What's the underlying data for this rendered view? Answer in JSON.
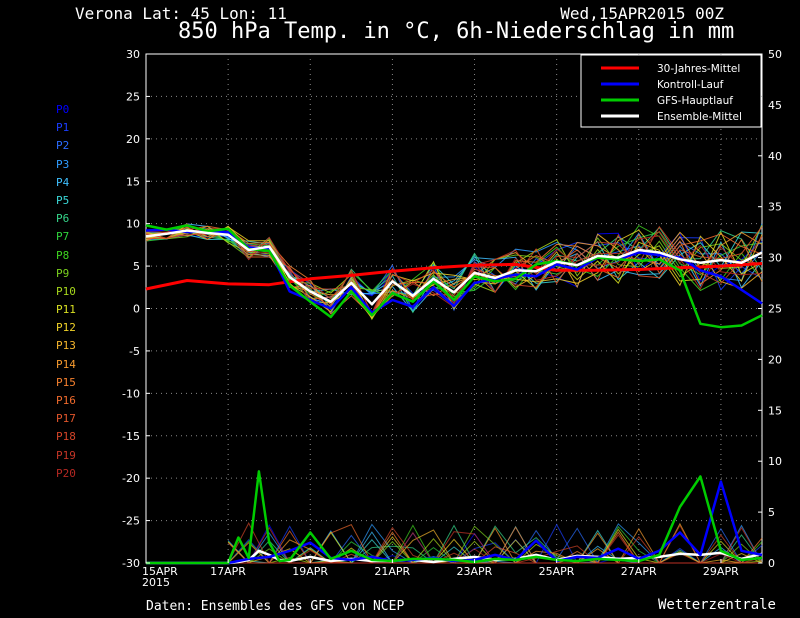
{
  "header": {
    "location": "Verona   Lat: 45 Lon: 11",
    "datetime": "Wed,15APR2015 00Z",
    "title": "850 hPa Temp. in °C, 6h-Niederschlag in mm"
  },
  "footer": {
    "source": "Daten: Ensembles des GFS von NCEP",
    "brand": "Wetterzentrale"
  },
  "members": [
    {
      "label": "P0",
      "color": "#0000ff"
    },
    {
      "label": "P1",
      "color": "#1a3dff"
    },
    {
      "label": "P2",
      "color": "#2a6cff"
    },
    {
      "label": "P3",
      "color": "#2f9cff"
    },
    {
      "label": "P4",
      "color": "#3fc0ff"
    },
    {
      "label": "P5",
      "color": "#3ad8d8"
    },
    {
      "label": "P6",
      "color": "#35d58a"
    },
    {
      "label": "P7",
      "color": "#2fd23c"
    },
    {
      "label": "P8",
      "color": "#3ed420"
    },
    {
      "label": "P9",
      "color": "#7ad01e"
    },
    {
      "label": "P10",
      "color": "#a6d61c"
    },
    {
      "label": "P11",
      "color": "#d9e021"
    },
    {
      "label": "P12",
      "color": "#f0d228"
    },
    {
      "label": "P13",
      "color": "#f5b52c"
    },
    {
      "label": "P14",
      "color": "#f59a2e"
    },
    {
      "label": "P15",
      "color": "#f5802e"
    },
    {
      "label": "P16",
      "color": "#ef6a2c"
    },
    {
      "label": "P17",
      "color": "#e0552a"
    },
    {
      "label": "P18",
      "color": "#d24428"
    },
    {
      "label": "P19",
      "color": "#c43526"
    },
    {
      "label": "P20",
      "color": "#b52822"
    }
  ],
  "chart_data": {
    "type": "line",
    "title": "850 hPa Temp. in °C, 6h-Niederschlag in mm",
    "x_ticks": [
      "15APR\n2015",
      "17APR",
      "19APR",
      "21APR",
      "23APR",
      "25APR",
      "27APR",
      "29APR"
    ],
    "x_range_days": [
      0,
      15
    ],
    "ylim_left": [
      -30,
      30
    ],
    "yticks_left": [
      30,
      25,
      20,
      15,
      10,
      5,
      0,
      -5,
      -10,
      -15,
      -20,
      -25,
      -30
    ],
    "ylim_right": [
      0,
      50
    ],
    "yticks_right": [
      50,
      45,
      40,
      35,
      30,
      25,
      20,
      15,
      10,
      5,
      0
    ],
    "grid": true,
    "legend_position": "top-right",
    "legend": [
      {
        "name": "30-Jahres-Mittel",
        "color": "#ff0000"
      },
      {
        "name": "Kontroll-Lauf",
        "color": "#0000ff"
      },
      {
        "name": "GFS-Hauptlauf",
        "color": "#00cc00"
      },
      {
        "name": "Ensemble-Mittel",
        "color": "#ffffff"
      }
    ],
    "series": [
      {
        "name": "30-Jahres-Mittel",
        "axis": "left",
        "color": "#ff0000",
        "x": [
          0,
          1,
          2,
          3,
          4,
          5,
          6,
          7,
          8,
          9,
          10,
          11,
          12,
          13,
          14,
          15
        ],
        "y": [
          2.3,
          3.3,
          2.9,
          2.8,
          3.5,
          3.9,
          4.4,
          4.8,
          5.1,
          5.2,
          4.5,
          4.5,
          4.6,
          4.8,
          5.0,
          5.3
        ]
      },
      {
        "name": "Kontroll-Lauf",
        "axis": "left",
        "color": "#0000ff",
        "x": [
          0,
          0.5,
          1,
          1.5,
          2,
          2.5,
          3,
          3.5,
          4,
          4.5,
          5,
          5.5,
          6,
          6.5,
          7,
          7.5,
          8,
          8.5,
          9,
          9.5,
          10,
          10.5,
          11,
          11.5,
          12,
          12.5,
          13,
          13.5,
          14,
          14.5,
          15
        ],
        "y": [
          9.2,
          9.3,
          9.0,
          9.1,
          9.0,
          7.2,
          7.0,
          2.0,
          1.0,
          0.0,
          2.5,
          -0.5,
          1.0,
          0.2,
          2.5,
          0.3,
          3.0,
          3.5,
          4.0,
          3.8,
          5.2,
          4.6,
          6.0,
          5.8,
          6.6,
          6.3,
          6.0,
          4.5,
          3.8,
          2.2,
          0.6
        ]
      },
      {
        "name": "GFS-Hauptlauf",
        "axis": "left",
        "color": "#00cc00",
        "x": [
          0,
          0.5,
          1,
          1.5,
          2,
          2.5,
          3,
          3.5,
          4,
          4.5,
          5,
          5.5,
          6,
          6.5,
          7,
          7.5,
          8,
          8.5,
          9,
          9.5,
          10,
          10.5,
          11,
          11.5,
          12,
          12.5,
          13,
          13.5,
          14,
          14.5,
          15
        ],
        "y": [
          9.8,
          9.3,
          9.8,
          9.1,
          9.4,
          7.0,
          6.8,
          2.7,
          0.8,
          -1.0,
          2.0,
          -0.8,
          1.8,
          0.8,
          3.2,
          1.0,
          3.8,
          3.2,
          3.5,
          5.2,
          5.6,
          5.1,
          6.0,
          5.8,
          5.6,
          5.8,
          4.5,
          -1.8,
          -2.2,
          -2.0,
          -0.8
        ]
      },
      {
        "name": "Ensemble-Mittel",
        "axis": "left",
        "color": "#ffffff",
        "x": [
          0,
          0.5,
          1,
          1.5,
          2,
          2.5,
          3,
          3.5,
          4,
          4.5,
          5,
          5.5,
          6,
          6.5,
          7,
          7.5,
          8,
          8.5,
          9,
          9.5,
          10,
          10.5,
          11,
          11.5,
          12,
          12.5,
          13,
          13.5,
          14,
          14.5,
          15
        ],
        "y": [
          8.5,
          8.8,
          9.2,
          8.9,
          8.7,
          6.9,
          7.3,
          3.7,
          2.0,
          0.8,
          3.0,
          0.5,
          3.2,
          1.5,
          3.5,
          1.9,
          4.2,
          3.6,
          4.5,
          4.4,
          5.5,
          5.1,
          6.2,
          6.0,
          6.9,
          6.6,
          5.8,
          5.4,
          5.7,
          5.4,
          6.6
        ]
      },
      {
        "name": "Ensemble-Mittel (Niederschlag)",
        "axis": "right",
        "color": "#ffffff",
        "x": [
          0,
          1,
          2,
          2.25,
          2.5,
          2.75,
          3,
          3.25,
          3.5,
          3.75,
          4,
          4.5,
          5,
          5.5,
          6,
          6.5,
          7,
          7.5,
          8,
          8.5,
          9,
          9.5,
          10,
          10.5,
          11,
          11.5,
          12,
          12.5,
          13,
          13.5,
          14,
          14.5,
          15
        ],
        "y": [
          0,
          0,
          0,
          0.1,
          0.3,
          1.2,
          0.8,
          0.3,
          0.2,
          0.4,
          0.6,
          0.2,
          0.4,
          0.2,
          0.2,
          0.3,
          0.1,
          0.4,
          0.6,
          0.3,
          0.4,
          0.8,
          0.3,
          0.7,
          0.6,
          0.4,
          0.5,
          0.6,
          0.9,
          0.8,
          1.0,
          0.4,
          0.9
        ]
      },
      {
        "name": "Kontroll-Lauf (Niederschlag)",
        "axis": "right",
        "color": "#0000ff",
        "x": [
          0,
          2,
          2.5,
          3,
          3.5,
          4,
          4.5,
          5,
          5.5,
          6,
          6.5,
          7,
          7.5,
          8,
          8.5,
          9,
          9.5,
          10,
          10.5,
          11,
          11.5,
          12,
          12.5,
          13,
          13.5,
          14,
          14.5,
          15
        ],
        "y": [
          0,
          0,
          0.4,
          0.6,
          1.2,
          2.0,
          0.5,
          0.3,
          0.6,
          0.2,
          0.3,
          0.5,
          0.2,
          0.3,
          0.8,
          0.3,
          2.2,
          0.2,
          0.6,
          0.5,
          1.4,
          0.4,
          1.2,
          3.0,
          0.8,
          8.0,
          1.2,
          0.8
        ]
      },
      {
        "name": "GFS-Hauptlauf (Niederschlag)",
        "axis": "right",
        "color": "#00cc00",
        "x": [
          0,
          2,
          2.25,
          2.5,
          2.75,
          3,
          3.25,
          3.5,
          4,
          4.5,
          5,
          5.5,
          6,
          6.5,
          7,
          7.5,
          8,
          8.5,
          9,
          9.5,
          10,
          10.5,
          11,
          11.5,
          12,
          12.5,
          13,
          13.5,
          14,
          14.5,
          15
        ],
        "y": [
          0,
          0,
          2.5,
          0.5,
          9.0,
          2.0,
          0.2,
          0.3,
          3.0,
          0.4,
          1.2,
          0.3,
          0.2,
          0.4,
          0.4,
          0.3,
          0.1,
          0.4,
          0.3,
          0.6,
          0.3,
          0.2,
          0.4,
          0.3,
          0.2,
          0.8,
          5.5,
          8.5,
          1.2,
          0.3,
          0.5
        ]
      }
    ]
  }
}
